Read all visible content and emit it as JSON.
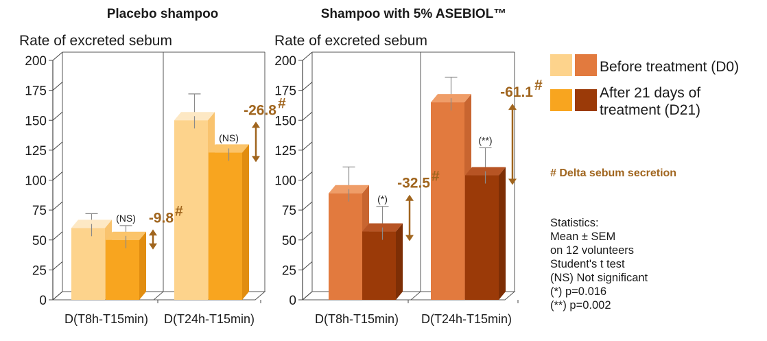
{
  "chart_data": [
    {
      "type": "bar",
      "title": "Placebo shampoo",
      "ylabel": "Rate of excreted sebum",
      "ylim": [
        0,
        200
      ],
      "yticks": [
        0,
        25,
        50,
        75,
        100,
        125,
        150,
        175,
        200
      ],
      "categories": [
        "D(T8h-T15min)",
        "D(T24h-T15min)"
      ],
      "series": [
        {
          "name": "Before treatment (D0)",
          "values": [
            60,
            150
          ],
          "errors": [
            12,
            22
          ],
          "color": "#fdd38c",
          "top": "#fde8c4",
          "side": "#f9c36e"
        },
        {
          "name": "After 21 days of treatment (D21)",
          "values": [
            50,
            123
          ],
          "errors": [
            12,
            6
          ],
          "color": "#f8a51f",
          "top": "#fbc46a",
          "side": "#e18d10"
        }
      ],
      "annotations": [
        {
          "category": 0,
          "delta": "-9.8",
          "significance": "(NS)"
        },
        {
          "category": 1,
          "delta": "-26.8",
          "significance": "(NS)"
        }
      ]
    },
    {
      "type": "bar",
      "title": "Shampoo with 5% ASEBIOL™",
      "ylabel": "Rate of excreted sebum",
      "ylim": [
        0,
        200
      ],
      "yticks": [
        0,
        25,
        50,
        75,
        100,
        125,
        150,
        175,
        200
      ],
      "categories": [
        "D(T8h-T15min)",
        "D(T24h-T15min)"
      ],
      "series": [
        {
          "name": "Before treatment (D0)",
          "values": [
            89,
            165
          ],
          "errors": [
            22,
            21
          ],
          "color": "#e27a3e",
          "top": "#ef9d68",
          "side": "#c86530"
        },
        {
          "name": "After 21 days of treatment (D21)",
          "values": [
            57,
            104
          ],
          "errors": [
            21,
            23
          ],
          "color": "#9b3a08",
          "top": "#b75424",
          "side": "#7d2e05"
        }
      ],
      "annotations": [
        {
          "category": 0,
          "delta": "-32.5",
          "significance": "(*)"
        },
        {
          "category": 1,
          "delta": "-61.1",
          "significance": "(**)"
        }
      ]
    }
  ],
  "delta_symbol": "#",
  "legend": {
    "before": {
      "text": "Before treatment (D0)",
      "swatches": [
        "#fdd38c",
        "#e27a3e"
      ]
    },
    "after": {
      "lines": [
        "After 21 days of",
        "treatment (D21)"
      ],
      "swatches": [
        "#f8a51f",
        "#9b3a08"
      ]
    }
  },
  "note": "# Delta sebum secretion",
  "statistics": [
    "Statistics:",
    "Mean ± SEM",
    "on 12 volunteers",
    "Student's t test",
    "(NS) Not significant",
    "(*) p=0.016",
    "(**) p=0.002"
  ],
  "colors": {
    "delta_arrow": "#a0651e",
    "axis": "#555555",
    "errorbar": "#888888"
  }
}
